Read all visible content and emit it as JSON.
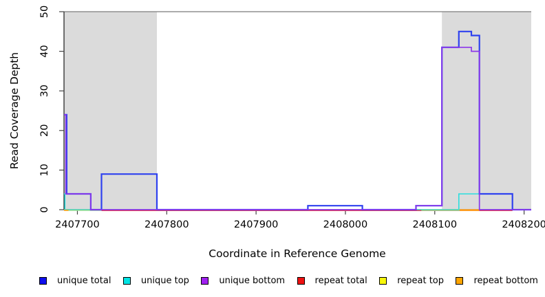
{
  "chart_data": {
    "type": "line",
    "subtype": "step-coverage",
    "xlabel": "Coordinate in Reference Genome",
    "ylabel": "Read Coverage Depth",
    "xlim": [
      2407685,
      2408208
    ],
    "ylim": [
      0,
      50
    ],
    "x_ticks": [
      2407700,
      2407800,
      2407900,
      2408000,
      2408100,
      2408200
    ],
    "y_ticks": [
      0,
      10,
      20,
      30,
      40,
      50
    ],
    "grid": false,
    "legend_position": "bottom",
    "max_depth_frame_line": 50,
    "shade_color": "#dbdbdb",
    "frame_line_color": "#8f8f8f",
    "axis_color": "#1a1a1a",
    "shaded_repeat_regions": [
      {
        "from": 2407685,
        "to": 2407789
      },
      {
        "from": 2408108,
        "to": 2408208
      }
    ],
    "series": [
      {
        "id": "unique-total",
        "label": "unique total",
        "legend_color": "#0f0fee",
        "line_color": "#2e41ef",
        "line_width": 2.2,
        "points": [
          [
            2407685,
            24
          ],
          [
            2407688,
            4
          ],
          [
            2407715,
            0
          ],
          [
            2407727,
            9
          ],
          [
            2407789,
            0
          ],
          [
            2407958,
            1
          ],
          [
            2408019,
            0
          ],
          [
            2408079,
            1
          ],
          [
            2408108,
            41
          ],
          [
            2408127,
            45
          ],
          [
            2408141,
            44
          ],
          [
            2408150,
            4
          ],
          [
            2408187,
            0
          ],
          [
            2408208,
            0
          ]
        ]
      },
      {
        "id": "unique-top",
        "label": "unique top",
        "legend_color": "#00e5e5",
        "line_color": "#2adede",
        "line_width": 1.6,
        "points": [
          [
            2407685,
            4
          ],
          [
            2407686,
            0
          ],
          [
            2408127,
            4
          ],
          [
            2408150,
            0
          ],
          [
            2408208,
            0
          ]
        ]
      },
      {
        "id": "unique-bottom",
        "label": "unique bottom",
        "legend_color": "#a020f0",
        "line_color": "#8c36ea",
        "line_width": 1.7,
        "points": [
          [
            2407685,
            24
          ],
          [
            2407687,
            4
          ],
          [
            2407715,
            0
          ],
          [
            2408079,
            1
          ],
          [
            2408108,
            41
          ],
          [
            2408141,
            40
          ],
          [
            2408150,
            0
          ],
          [
            2408208,
            0
          ]
        ]
      },
      {
        "id": "repeat-total",
        "label": "repeat total",
        "legend_color": "#ee1111",
        "line_color": "#e63a50",
        "line_width": 1.2,
        "points": [
          [
            2407685,
            0
          ],
          [
            2408208,
            0
          ]
        ]
      },
      {
        "id": "repeat-top",
        "label": "repeat top",
        "legend_color": "#f7f70a",
        "line_color": "#f0e62a",
        "line_width": 1.2,
        "points": [
          [
            2407685,
            0
          ],
          [
            2408208,
            0
          ]
        ]
      },
      {
        "id": "repeat-bottom",
        "label": "repeat bottom",
        "legend_color": "#ffa500",
        "line_color": "#ffa51e",
        "line_width": 1.2,
        "points": [
          [
            2407685,
            0
          ],
          [
            2408208,
            0
          ]
        ]
      }
    ],
    "baseline_overlap_marks": [
      {
        "color": "red",
        "from": 2407727,
        "to": 2408187
      },
      {
        "color": "green",
        "from": 2407686,
        "to": 2407727
      },
      {
        "color": "green",
        "from": 2408085,
        "to": 2408128
      },
      {
        "color": "orange",
        "from": 2408128,
        "to": 2408150
      },
      {
        "color": "orange",
        "from": 2407685,
        "to": 2407690
      }
    ],
    "overlap_mark_colors": {
      "red": "#e63a50",
      "green": "#9bdb8f",
      "orange": "#ffa51e"
    }
  }
}
